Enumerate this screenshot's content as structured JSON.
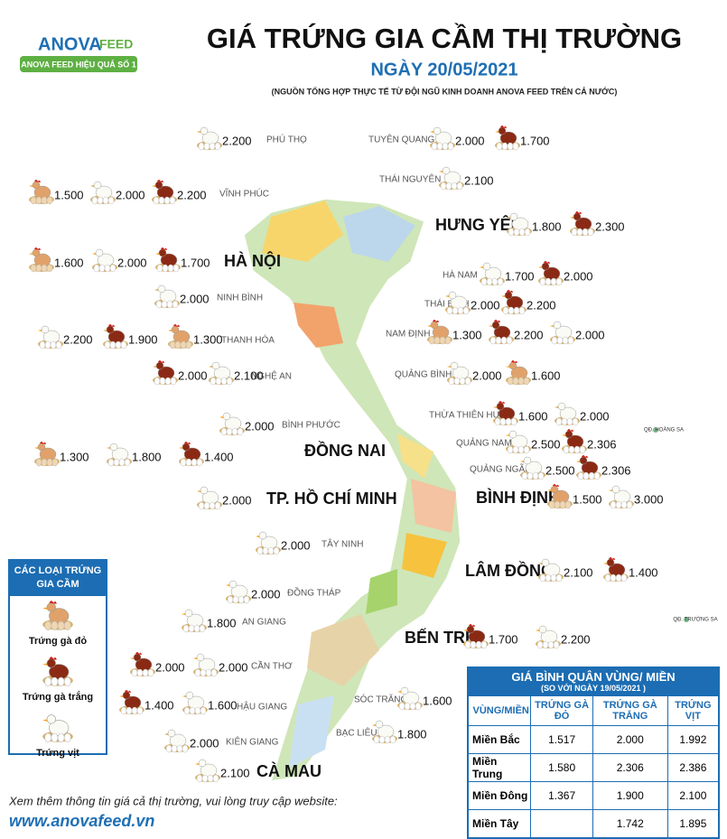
{
  "logo": {
    "brand": "ANOVA",
    "sub": "FEED",
    "slogan": "ANOVA FEED HIỆU QUẢ SỐ 1"
  },
  "header": {
    "title": "GIÁ TRỨNG GIA CẦM THỊ TRƯỜNG",
    "date": "NGÀY 20/05/2021",
    "source": "(NGUỒN TỔNG HỢP THỰC TẾ TỪ ĐỘI NGŨ KINH DOANH ANOVA FEED TRÊN CẢ NƯỚC)"
  },
  "provinces": [
    {
      "name": "PHÚ THỌ",
      "prices": {
        "vit": "2.200"
      }
    },
    {
      "name": "TUYÊN QUANG",
      "prices": {
        "vit": "2.000",
        "ga_trang": "1.700"
      }
    },
    {
      "name": "THÁI NGUYÊN",
      "prices": {
        "vit": "2.100"
      }
    },
    {
      "name": "VĨNH PHÚC",
      "prices": {
        "ga_do": "1.500",
        "vit": "2.000",
        "ga_trang": "2.200"
      }
    },
    {
      "name": "HƯNG YÊN",
      "prices": {
        "vit": "1.800",
        "ga_trang": "2.300"
      }
    },
    {
      "name": "HÀ NỘI",
      "prices": {
        "ga_do": "1.600",
        "vit": "2.000",
        "ga_trang": "1.700"
      }
    },
    {
      "name": "HÀ NAM",
      "prices": {
        "vit": "1.700",
        "ga_trang": "2.000"
      }
    },
    {
      "name": "NINH BÌNH",
      "prices": {
        "vit": "2.000"
      }
    },
    {
      "name": "THÁI BÌNH",
      "prices": {
        "vit": "2.000",
        "ga_trang": "2.200"
      }
    },
    {
      "name": "THANH HÓA",
      "prices": {
        "vit": "2.200",
        "ga_trang": "1.900",
        "ga_do": "1.300"
      }
    },
    {
      "name": "NAM ĐỊNH",
      "prices": {
        "ga_do": "1.300",
        "ga_trang": "2.200",
        "vit": "2.000"
      }
    },
    {
      "name": "NGHỆ AN",
      "prices": {
        "ga_trang": "2.000",
        "vit": "2.100"
      }
    },
    {
      "name": "QUẢNG BÌNH",
      "prices": {
        "vit": "2.000",
        "ga_do": "1.600"
      }
    },
    {
      "name": "THỪA THIÊN HUẾ",
      "prices": {
        "ga_trang": "1.600",
        "vit": "2.000"
      }
    },
    {
      "name": "BÌNH PHƯỚC",
      "prices": {
        "vit": "2.000"
      }
    },
    {
      "name": "ĐỒNG NAI",
      "prices": {
        "ga_do": "1.300",
        "vit": "1.800",
        "ga_trang": "1.400"
      }
    },
    {
      "name": "QUẢNG NAM",
      "prices": {
        "vit": "2.500",
        "ga_trang": "2.306"
      }
    },
    {
      "name": "QUẢNG NGÃI",
      "prices": {
        "vit": "2.500",
        "ga_trang": "2.306"
      }
    },
    {
      "name": "TP. HỒ CHÍ MINH",
      "prices": {
        "vit": "2.000"
      }
    },
    {
      "name": "BÌNH ĐỊNH",
      "prices": {
        "ga_do": "1.500",
        "vit": "3.000"
      }
    },
    {
      "name": "TÂY NINH",
      "prices": {
        "vit": "2.000"
      }
    },
    {
      "name": "LÂM ĐỒNG",
      "prices": {
        "vit": "2.100",
        "ga_trang": "1.400"
      }
    },
    {
      "name": "ĐỒNG THÁP",
      "prices": {
        "vit": "2.000"
      }
    },
    {
      "name": "AN GIANG",
      "prices": {
        "vit": "1.800"
      }
    },
    {
      "name": "BẾN TRE:",
      "prices": {
        "ga_trang": "1.700",
        "vit": "2.200"
      }
    },
    {
      "name": "CẦN THƠ",
      "prices": {
        "ga_trang": "2.000",
        "vit": "2.000"
      }
    },
    {
      "name": "HẬU GIANG",
      "prices": {
        "ga_trang": "1.400",
        "vit": "1.600"
      }
    },
    {
      "name": "SÓC TRĂNG",
      "prices": {
        "vit": "1.600"
      }
    },
    {
      "name": "KIÊN GIANG",
      "prices": {
        "vit": "2.000"
      }
    },
    {
      "name": "BẠC LIÊU",
      "prices": {
        "vit": "1.800"
      }
    },
    {
      "name": "CÀ MAU",
      "prices": {
        "vit": "2.100"
      }
    }
  ],
  "islands": [
    "QĐ. HOÀNG SA",
    "QĐ. TRƯỜNG SA"
  ],
  "legend": {
    "title": "CÁC LOẠI TRỨNG GIA CẦM",
    "items": [
      "Trứng gà đỏ",
      "Trứng gà trắng",
      "Trứng vịt"
    ]
  },
  "table": {
    "title": "GIÁ BÌNH QUÂN VÙNG/ MIỀN",
    "note": "(SO VỚI NGÀY 19/05/2021 )",
    "columns": [
      "VÙNG/MIỀN",
      "TRỨNG GÀ ĐỎ",
      "TRỨNG GÀ TRẮNG",
      "TRỨNG VỊT"
    ],
    "rows": [
      [
        "Miền Bắc",
        "1.517",
        "2.000",
        "1.992"
      ],
      [
        "Miền Trung",
        "1.580",
        "2.306",
        "2.386"
      ],
      [
        "Miền Đông",
        "1.367",
        "1.900",
        "2.100"
      ],
      [
        "Miền Tây",
        null,
        "1.742",
        "1.895"
      ]
    ]
  },
  "footer": {
    "text": "Xem thêm thông tin giá cả thị trường, vui lòng truy cập website:",
    "url": "www.anovafeed.vn"
  }
}
